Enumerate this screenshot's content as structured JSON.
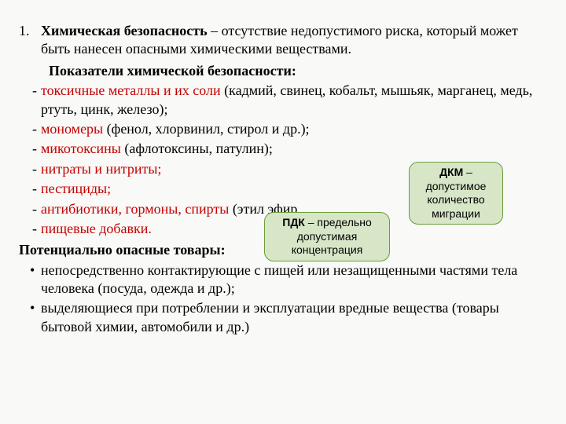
{
  "background_color": "#f9f9f7",
  "text_color": "#000000",
  "red_color": "#c30000",
  "font_family": "Times New Roman",
  "base_fontsize": 18,
  "numbered": {
    "num": "1.",
    "bold": "Химическая безопасность",
    "rest": " – отсутствие недопустимого риска, который может быть нанесен опасными химическими веществами."
  },
  "subhead": "Показатели химической безопасности:",
  "dash_items": [
    {
      "red": "токсичные металлы и их соли ",
      "black": "(кадмий, свинец, кобальт, мышьяк, марганец, медь, ртуть, цинк, железо);"
    },
    {
      "red": "мономеры ",
      "black": "(фенол, хлорвинил, стирол и др.);"
    },
    {
      "red": "микотоксины ",
      "black": "(афлотоксины, патулин);"
    },
    {
      "red": "нитраты и нитриты;",
      "black": ""
    },
    {
      "red": "пестициды;",
      "black": ""
    },
    {
      "red": "антибиотики, гормоны, спирты",
      "black": " (этил        эфир   ,   "
    },
    {
      "red": "пищевые добавки.",
      "black": ""
    }
  ],
  "sect_head": "Потенциально опасные товары:",
  "bullet_items": [
    "непосредственно контактирующие с пищей или незащищенными частями тела человека (посуда, одежда и др.);",
    "выделяющиеся при потреблении и эксплуатации вредные вещества (товары бытовой химии, автомобили и др.)"
  ],
  "callouts": [
    {
      "bold": "ПДК",
      "text": " – предельно допустимая концентрация",
      "bg": "#d8e6c8",
      "border": "#6a9c3a"
    },
    {
      "bold": "ДКМ",
      "text": " – допустимое количество миграции",
      "bg": "#d8e6c8",
      "border": "#6a9c3a"
    }
  ]
}
